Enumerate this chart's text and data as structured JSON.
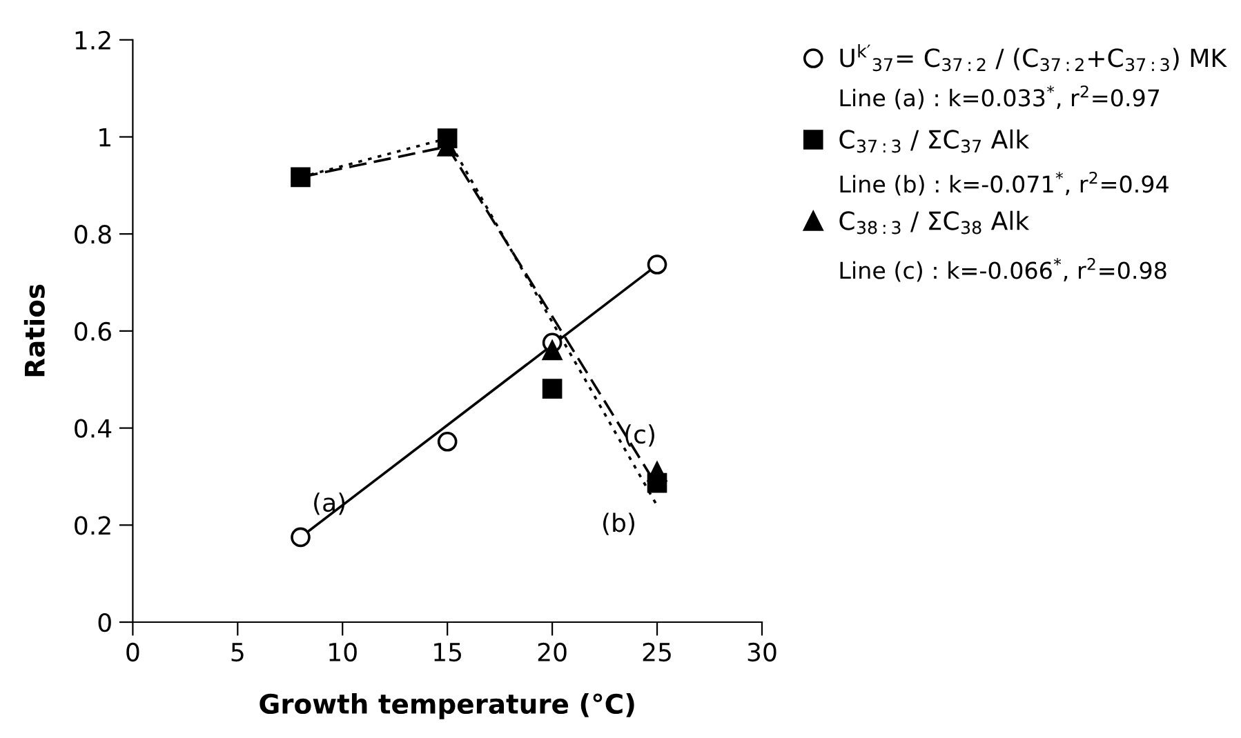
{
  "chart_data": {
    "type": "scatter",
    "xlabel": "Growth temperature (°C)",
    "ylabel": "Ratios",
    "xlim": [
      0,
      30
    ],
    "xticks": [
      0,
      5,
      10,
      15,
      20,
      25,
      30
    ],
    "ylim": [
      0,
      1.2
    ],
    "yticks": [
      0,
      0.2,
      0.4,
      0.6,
      0.8,
      1,
      1.2
    ],
    "grid": false,
    "legend": "right",
    "series": [
      {
        "name": "U$^{k′}$$_{37}$= C$_{37:2}$ / (C$_{37:2}$+C$_{37:3}$) MK",
        "marker": "circle",
        "color": "#000000",
        "x": [
          8,
          15,
          20,
          25
        ],
        "values": [
          0.175,
          0.372,
          0.576,
          0.737
        ]
      },
      {
        "name": "C$_{37:3}$ / ΣC$_{37}$ Alk",
        "marker": "square",
        "color": "#000000",
        "x": [
          8,
          15,
          20,
          25
        ],
        "values": [
          0.917,
          0.997,
          0.481,
          0.287
        ]
      },
      {
        "name": "C$_{38:3}$ / ΣC$_{38}$ Alk",
        "marker": "triangle",
        "color": "#000000",
        "x": [
          15,
          20,
          25
        ],
        "values": [
          0.98,
          0.56,
          0.31
        ]
      },
      {
        "type": "line",
        "line_style": "solid",
        "marker": "none",
        "color": "#000000",
        "x": [
          8,
          25
        ],
        "values": [
          0.175,
          0.736
        ]
      },
      {
        "type": "line",
        "line_style": "dotted",
        "marker": "none",
        "color": "#000000",
        "x": [
          8,
          15,
          25
        ],
        "values": [
          0.917,
          0.997,
          0.24
        ]
      },
      {
        "type": "line",
        "line_style": "dashed",
        "marker": "none",
        "color": "#000000",
        "x": [
          8,
          15,
          25
        ],
        "values": [
          0.917,
          0.98,
          0.28
        ]
      }
    ],
    "annotations": [
      "Line (a) : k=0.033$^{*}$, r$^{2}$=0.97",
      "Line (b) : k=-0.071$^{*}$, r$^{2}$=0.94",
      "Line (c) : k=-0.066$^{*}$, r$^{2}$=0.98",
      "(a)",
      "(b)",
      "(c)"
    ]
  }
}
